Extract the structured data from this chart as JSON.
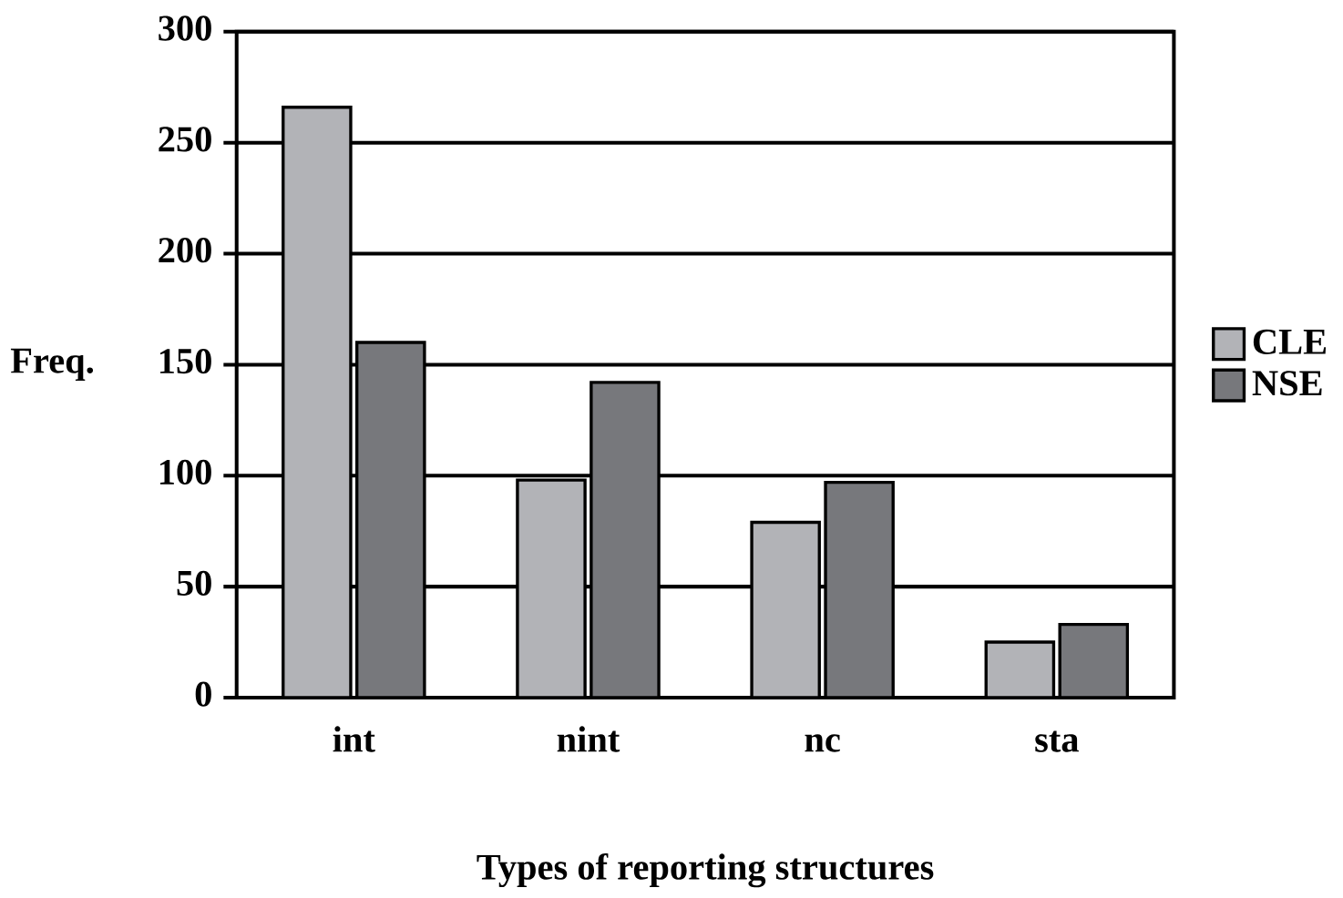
{
  "chart_data": {
    "type": "bar",
    "xlabel": "Types of reporting structures",
    "ylabel": "Freq.",
    "categories": [
      "int",
      "nint",
      "nc",
      "sta"
    ],
    "series": [
      {
        "name": "CLE",
        "color": "#b2b3b7",
        "values": [
          266,
          98,
          79,
          25
        ]
      },
      {
        "name": "NSE",
        "color": "#77787c",
        "values": [
          160,
          142,
          97,
          33
        ]
      }
    ],
    "ylim": [
      0,
      300
    ],
    "yticks": [
      0,
      50,
      100,
      150,
      200,
      250,
      300
    ],
    "grid": "y",
    "legend": "right"
  }
}
